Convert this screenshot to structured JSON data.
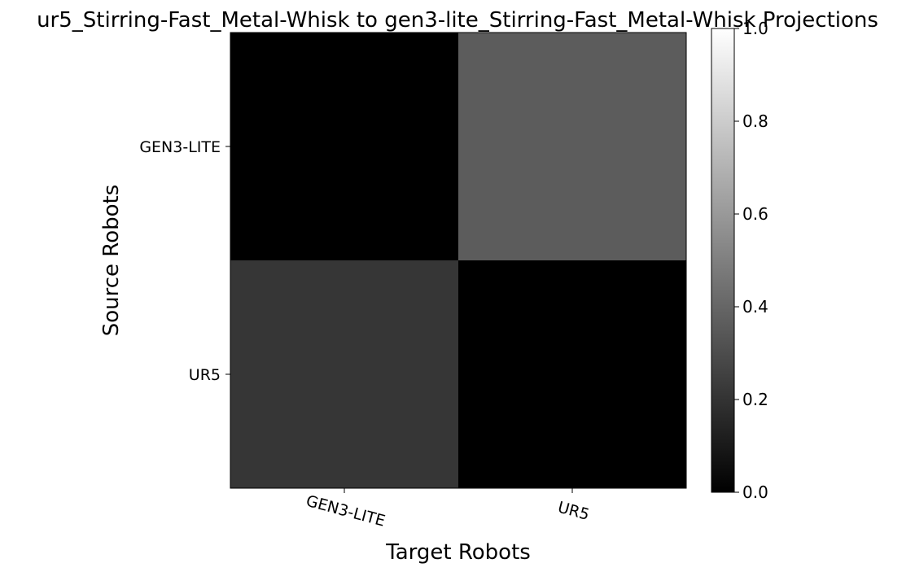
{
  "chart_data": {
    "type": "heatmap",
    "title": "ur5_Stirring-Fast_Metal-Whisk to gen3-lite_Stirring-Fast_Metal-Whisk Projections",
    "xlabel": "Target Robots",
    "ylabel": "Source Robots",
    "x_categories": [
      "GEN3-LITE",
      "UR5"
    ],
    "y_categories": [
      "GEN3-LITE",
      "UR5"
    ],
    "values": [
      [
        0.0,
        0.36
      ],
      [
        0.21,
        0.0
      ]
    ],
    "colormap": "gray",
    "colorbar": {
      "range": [
        0.0,
        1.0
      ],
      "ticks": [
        "0.0",
        "0.2",
        "0.4",
        "0.6",
        "0.8",
        "1.0"
      ]
    }
  }
}
